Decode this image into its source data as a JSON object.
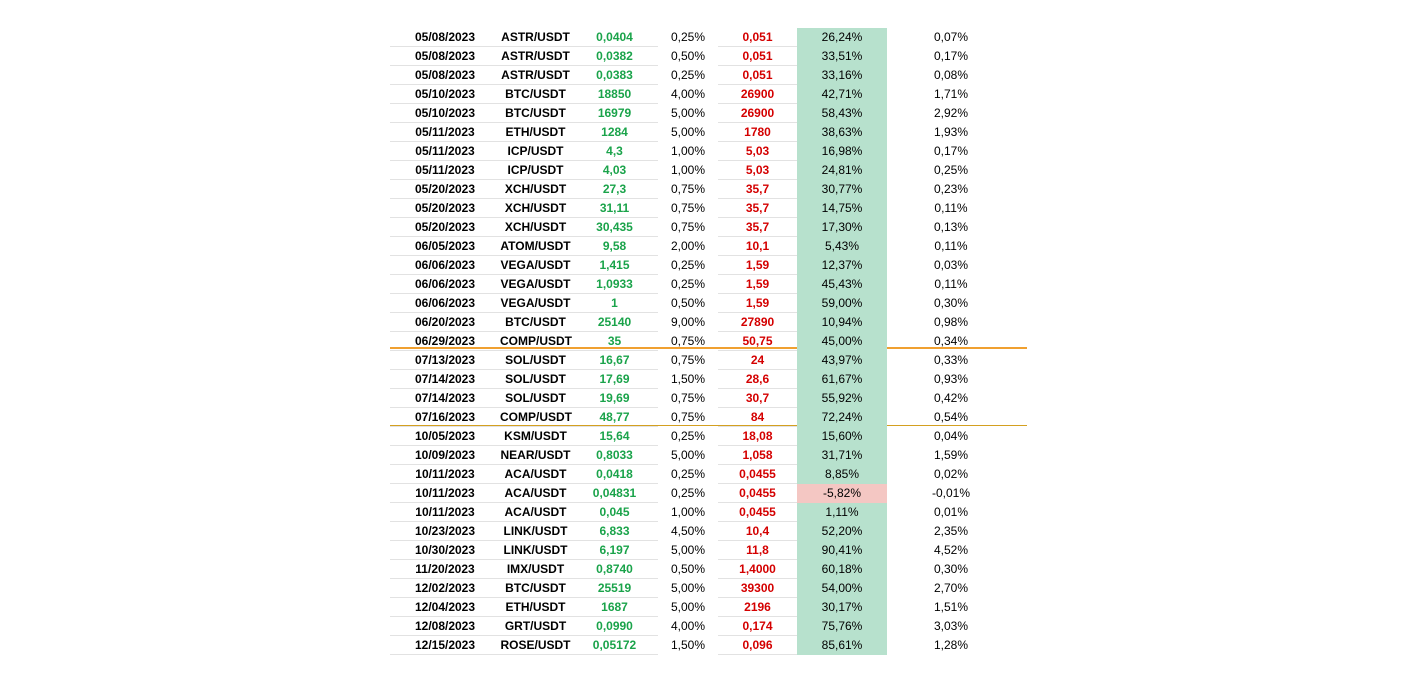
{
  "table": {
    "negative_row": 24,
    "rows": [
      [
        "05/08/2023",
        "ASTR/USDT",
        "0,0404",
        "0,25%",
        "0,051",
        "26,24%",
        "0,07%"
      ],
      [
        "05/08/2023",
        "ASTR/USDT",
        "0,0382",
        "0,50%",
        "0,051",
        "33,51%",
        "0,17%"
      ],
      [
        "05/08/2023",
        "ASTR/USDT",
        "0,0383",
        "0,25%",
        "0,051",
        "33,16%",
        "0,08%"
      ],
      [
        "05/10/2023",
        "BTC/USDT",
        "18850",
        "4,00%",
        "26900",
        "42,71%",
        "1,71%"
      ],
      [
        "05/10/2023",
        "BTC/USDT",
        "16979",
        "5,00%",
        "26900",
        "58,43%",
        "2,92%"
      ],
      [
        "05/11/2023",
        "ETH/USDT",
        "1284",
        "5,00%",
        "1780",
        "38,63%",
        "1,93%"
      ],
      [
        "05/11/2023",
        "ICP/USDT",
        "4,3",
        "1,00%",
        "5,03",
        "16,98%",
        "0,17%"
      ],
      [
        "05/11/2023",
        "ICP/USDT",
        "4,03",
        "1,00%",
        "5,03",
        "24,81%",
        "0,25%"
      ],
      [
        "05/20/2023",
        "XCH/USDT",
        "27,3",
        "0,75%",
        "35,7",
        "30,77%",
        "0,23%"
      ],
      [
        "05/20/2023",
        "XCH/USDT",
        "31,11",
        "0,75%",
        "35,7",
        "14,75%",
        "0,11%"
      ],
      [
        "05/20/2023",
        "XCH/USDT",
        "30,435",
        "0,75%",
        "35,7",
        "17,30%",
        "0,13%"
      ],
      [
        "06/05/2023",
        "ATOM/USDT",
        "9,58",
        "2,00%",
        "10,1",
        "5,43%",
        "0,11%"
      ],
      [
        "06/06/2023",
        "VEGA/USDT",
        "1,415",
        "0,25%",
        "1,59",
        "12,37%",
        "0,03%"
      ],
      [
        "06/06/2023",
        "VEGA/USDT",
        "1,0933",
        "0,25%",
        "1,59",
        "45,43%",
        "0,11%"
      ],
      [
        "06/06/2023",
        "VEGA/USDT",
        "1",
        "0,50%",
        "1,59",
        "59,00%",
        "0,30%"
      ],
      [
        "06/20/2023",
        "BTC/USDT",
        "25140",
        "9,00%",
        "27890",
        "10,94%",
        "0,98%"
      ],
      [
        "06/29/2023",
        "COMP/USDT",
        "35",
        "0,75%",
        "50,75",
        "45,00%",
        "0,34%"
      ],
      [
        "07/13/2023",
        "SOL/USDT",
        "16,67",
        "0,75%",
        "24",
        "43,97%",
        "0,33%"
      ],
      [
        "07/14/2023",
        "SOL/USDT",
        "17,69",
        "1,50%",
        "28,6",
        "61,67%",
        "0,93%"
      ],
      [
        "07/14/2023",
        "SOL/USDT",
        "19,69",
        "0,75%",
        "30,7",
        "55,92%",
        "0,42%"
      ],
      [
        "07/16/2023",
        "COMP/USDT",
        "48,77",
        "0,75%",
        "84",
        "72,24%",
        "0,54%"
      ],
      [
        "10/05/2023",
        "KSM/USDT",
        "15,64",
        "0,25%",
        "18,08",
        "15,60%",
        "0,04%"
      ],
      [
        "10/09/2023",
        "NEAR/USDT",
        "0,8033",
        "5,00%",
        "1,058",
        "31,71%",
        "1,59%"
      ],
      [
        "10/11/2023",
        "ACA/USDT",
        "0,0418",
        "0,25%",
        "0,0455",
        "8,85%",
        "0,02%"
      ],
      [
        "10/11/2023",
        "ACA/USDT",
        "0,04831",
        "0,25%",
        "0,0455",
        "-5,82%",
        "-0,01%"
      ],
      [
        "10/11/2023",
        "ACA/USDT",
        "0,045",
        "1,00%",
        "0,0455",
        "1,11%",
        "0,01%"
      ],
      [
        "10/23/2023",
        "LINK/USDT",
        "6,833",
        "4,50%",
        "10,4",
        "52,20%",
        "2,35%"
      ],
      [
        "10/30/2023",
        "LINK/USDT",
        "6,197",
        "5,00%",
        "11,8",
        "90,41%",
        "4,52%"
      ],
      [
        "11/20/2023",
        "IMX/USDT",
        "0,8740",
        "0,50%",
        "1,4000",
        "60,18%",
        "0,30%"
      ],
      [
        "12/02/2023",
        "BTC/USDT",
        "25519",
        "5,00%",
        "39300",
        "54,00%",
        "2,70%"
      ],
      [
        "12/04/2023",
        "ETH/USDT",
        "1687",
        "5,00%",
        "2196",
        "30,17%",
        "1,51%"
      ],
      [
        "12/08/2023",
        "GRT/USDT",
        "0,0990",
        "4,00%",
        "0,174",
        "75,76%",
        "3,03%"
      ],
      [
        "12/15/2023",
        "ROSE/USDT",
        "0,05172",
        "1,50%",
        "0,096",
        "85,61%",
        "1,28%"
      ]
    ]
  }
}
